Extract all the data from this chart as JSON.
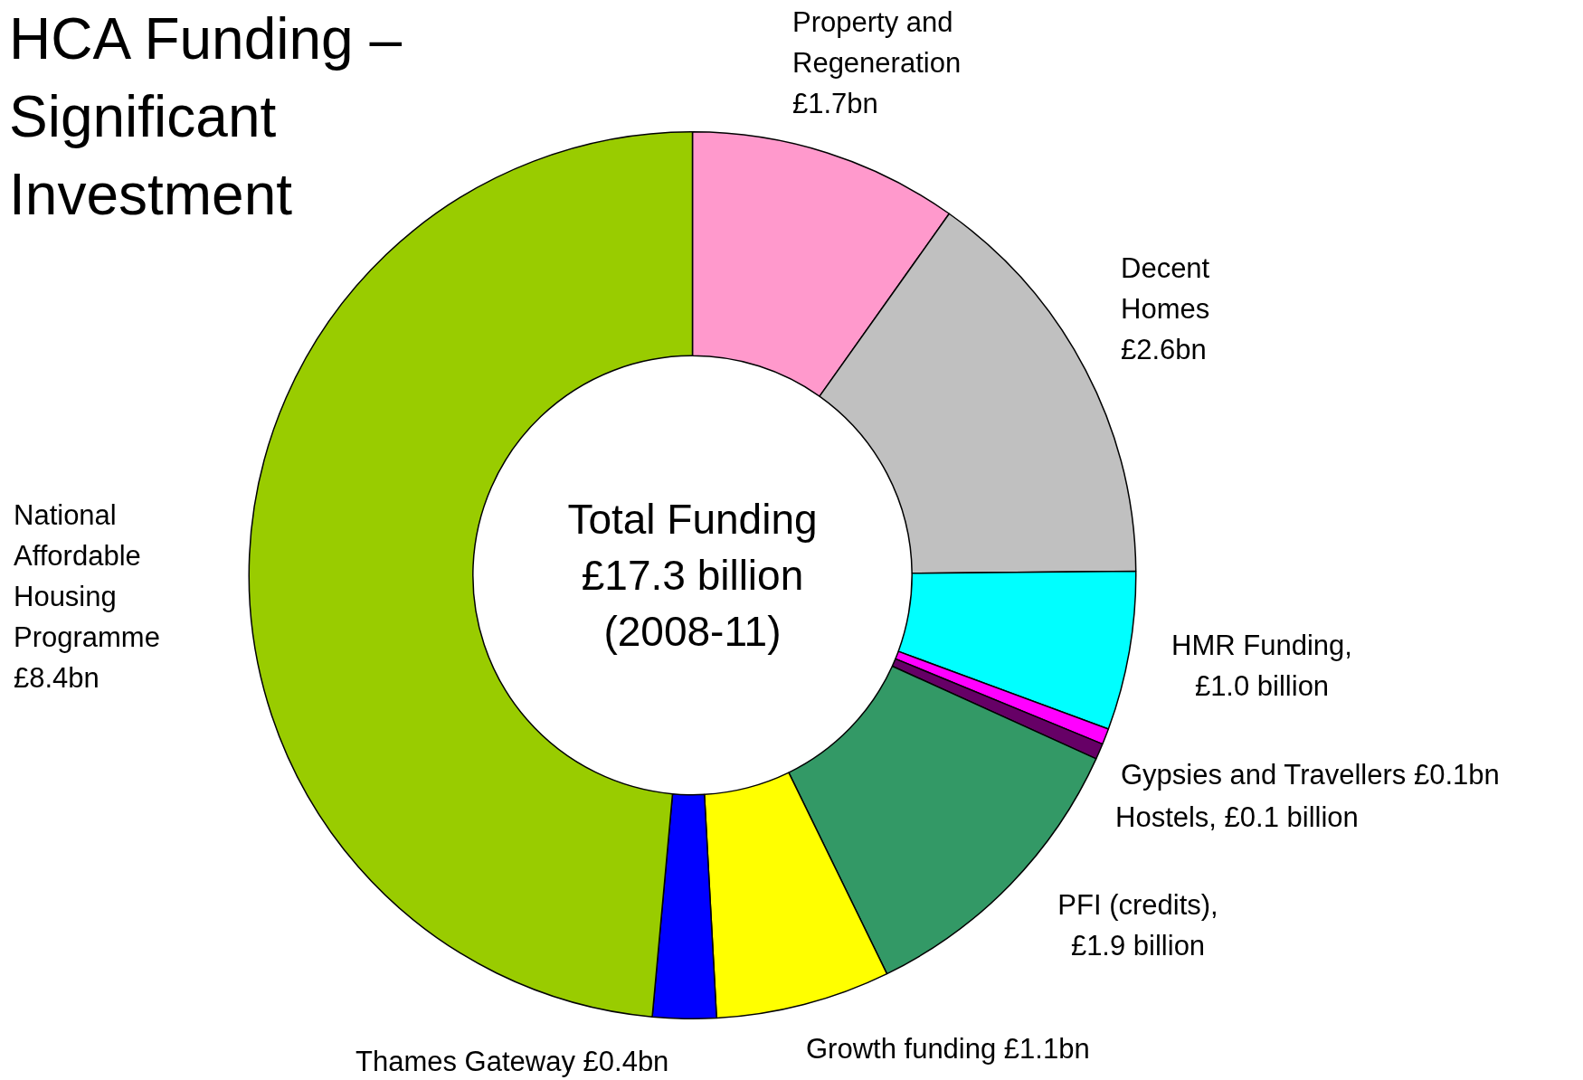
{
  "chart_data": {
    "type": "donut",
    "title": "HCA Funding – Significant Investment",
    "categories": [
      "Property and Regeneration £1.7bn",
      "Decent Homes £2.6bn",
      "HMR Funding, £1.0 billion",
      "Gypsies and Travellers £0.1bn",
      "Hostels, £0.1 billion",
      "PFI (credits), £1.9 billion",
      "Growth funding £1.1bn",
      "Thames Gateway £0.4bn",
      "National Affordable Housing Programme £8.4bn"
    ],
    "values": [
      1.7,
      2.6,
      1.0,
      0.1,
      0.1,
      1.9,
      1.1,
      0.4,
      8.4
    ],
    "colors": [
      "#ff99cc",
      "#c0c0c0",
      "#00ffff",
      "#ff00ff",
      "#660066",
      "#339966",
      "#ffff00",
      "#0000ff",
      "#99cc00"
    ],
    "annotations": [
      "Total Funding £17.3 billion (2008-11)"
    ],
    "legend": false
  }
}
